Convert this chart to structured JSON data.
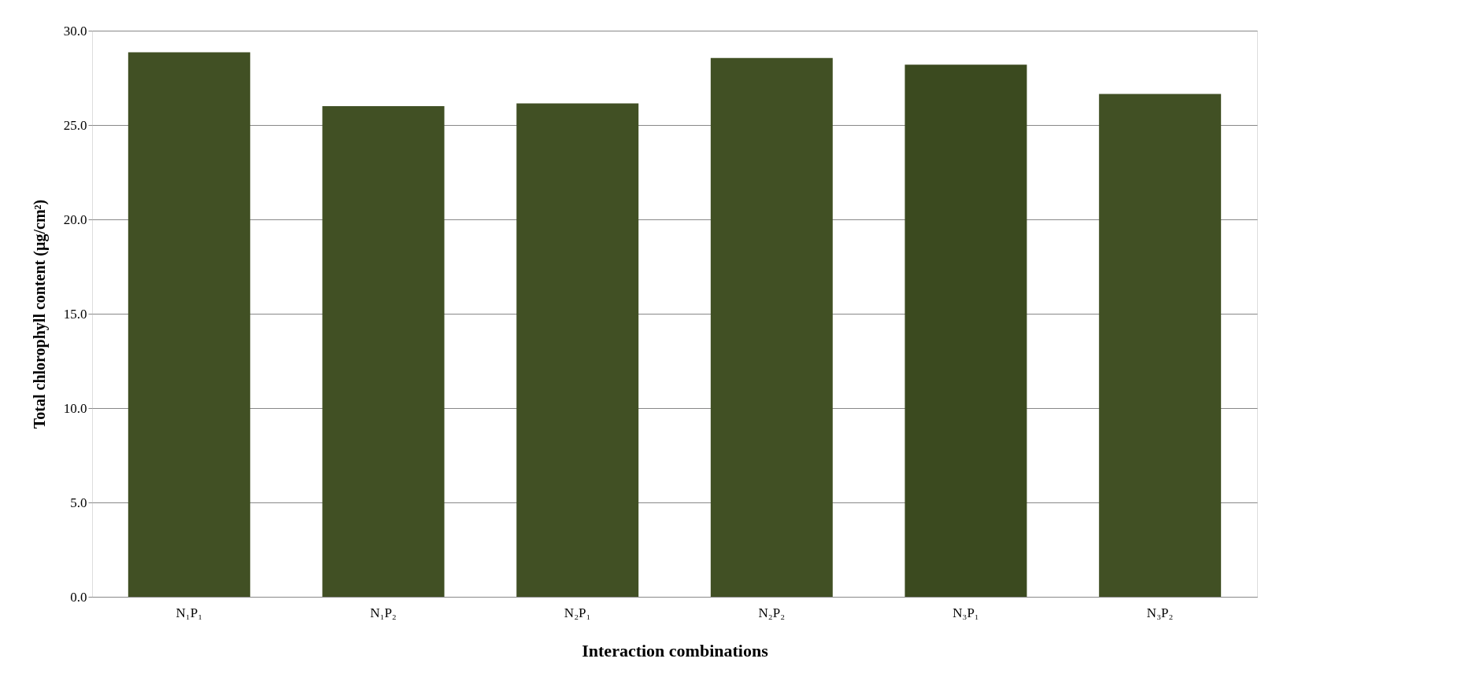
{
  "chart_data": {
    "type": "bar",
    "xlabel": "Interaction combinations",
    "ylabel": "Total chlorophyll content (µg/cm²)",
    "categories": [
      "N₁P₁",
      "N₁P₂",
      "N₂P₁",
      "N₂P₂",
      "N₃P₁",
      "N₃P₂"
    ],
    "values": [
      28.85,
      26.0,
      26.15,
      28.55,
      28.2,
      26.65
    ],
    "colors": [
      "#415024",
      "#415024",
      "#415024",
      "#415024",
      "#3b4a1f",
      "#415024"
    ],
    "ylim": [
      0,
      30
    ],
    "yticks": [
      {
        "value": 0,
        "label": "0.0"
      },
      {
        "value": 5,
        "label": "5.0"
      },
      {
        "value": 10,
        "label": "10.0"
      },
      {
        "value": 15,
        "label": "15.0"
      },
      {
        "value": 20,
        "label": "20.0"
      },
      {
        "value": 25,
        "label": "25.0"
      },
      {
        "value": 30,
        "label": "30.0"
      }
    ],
    "grid": "y"
  }
}
